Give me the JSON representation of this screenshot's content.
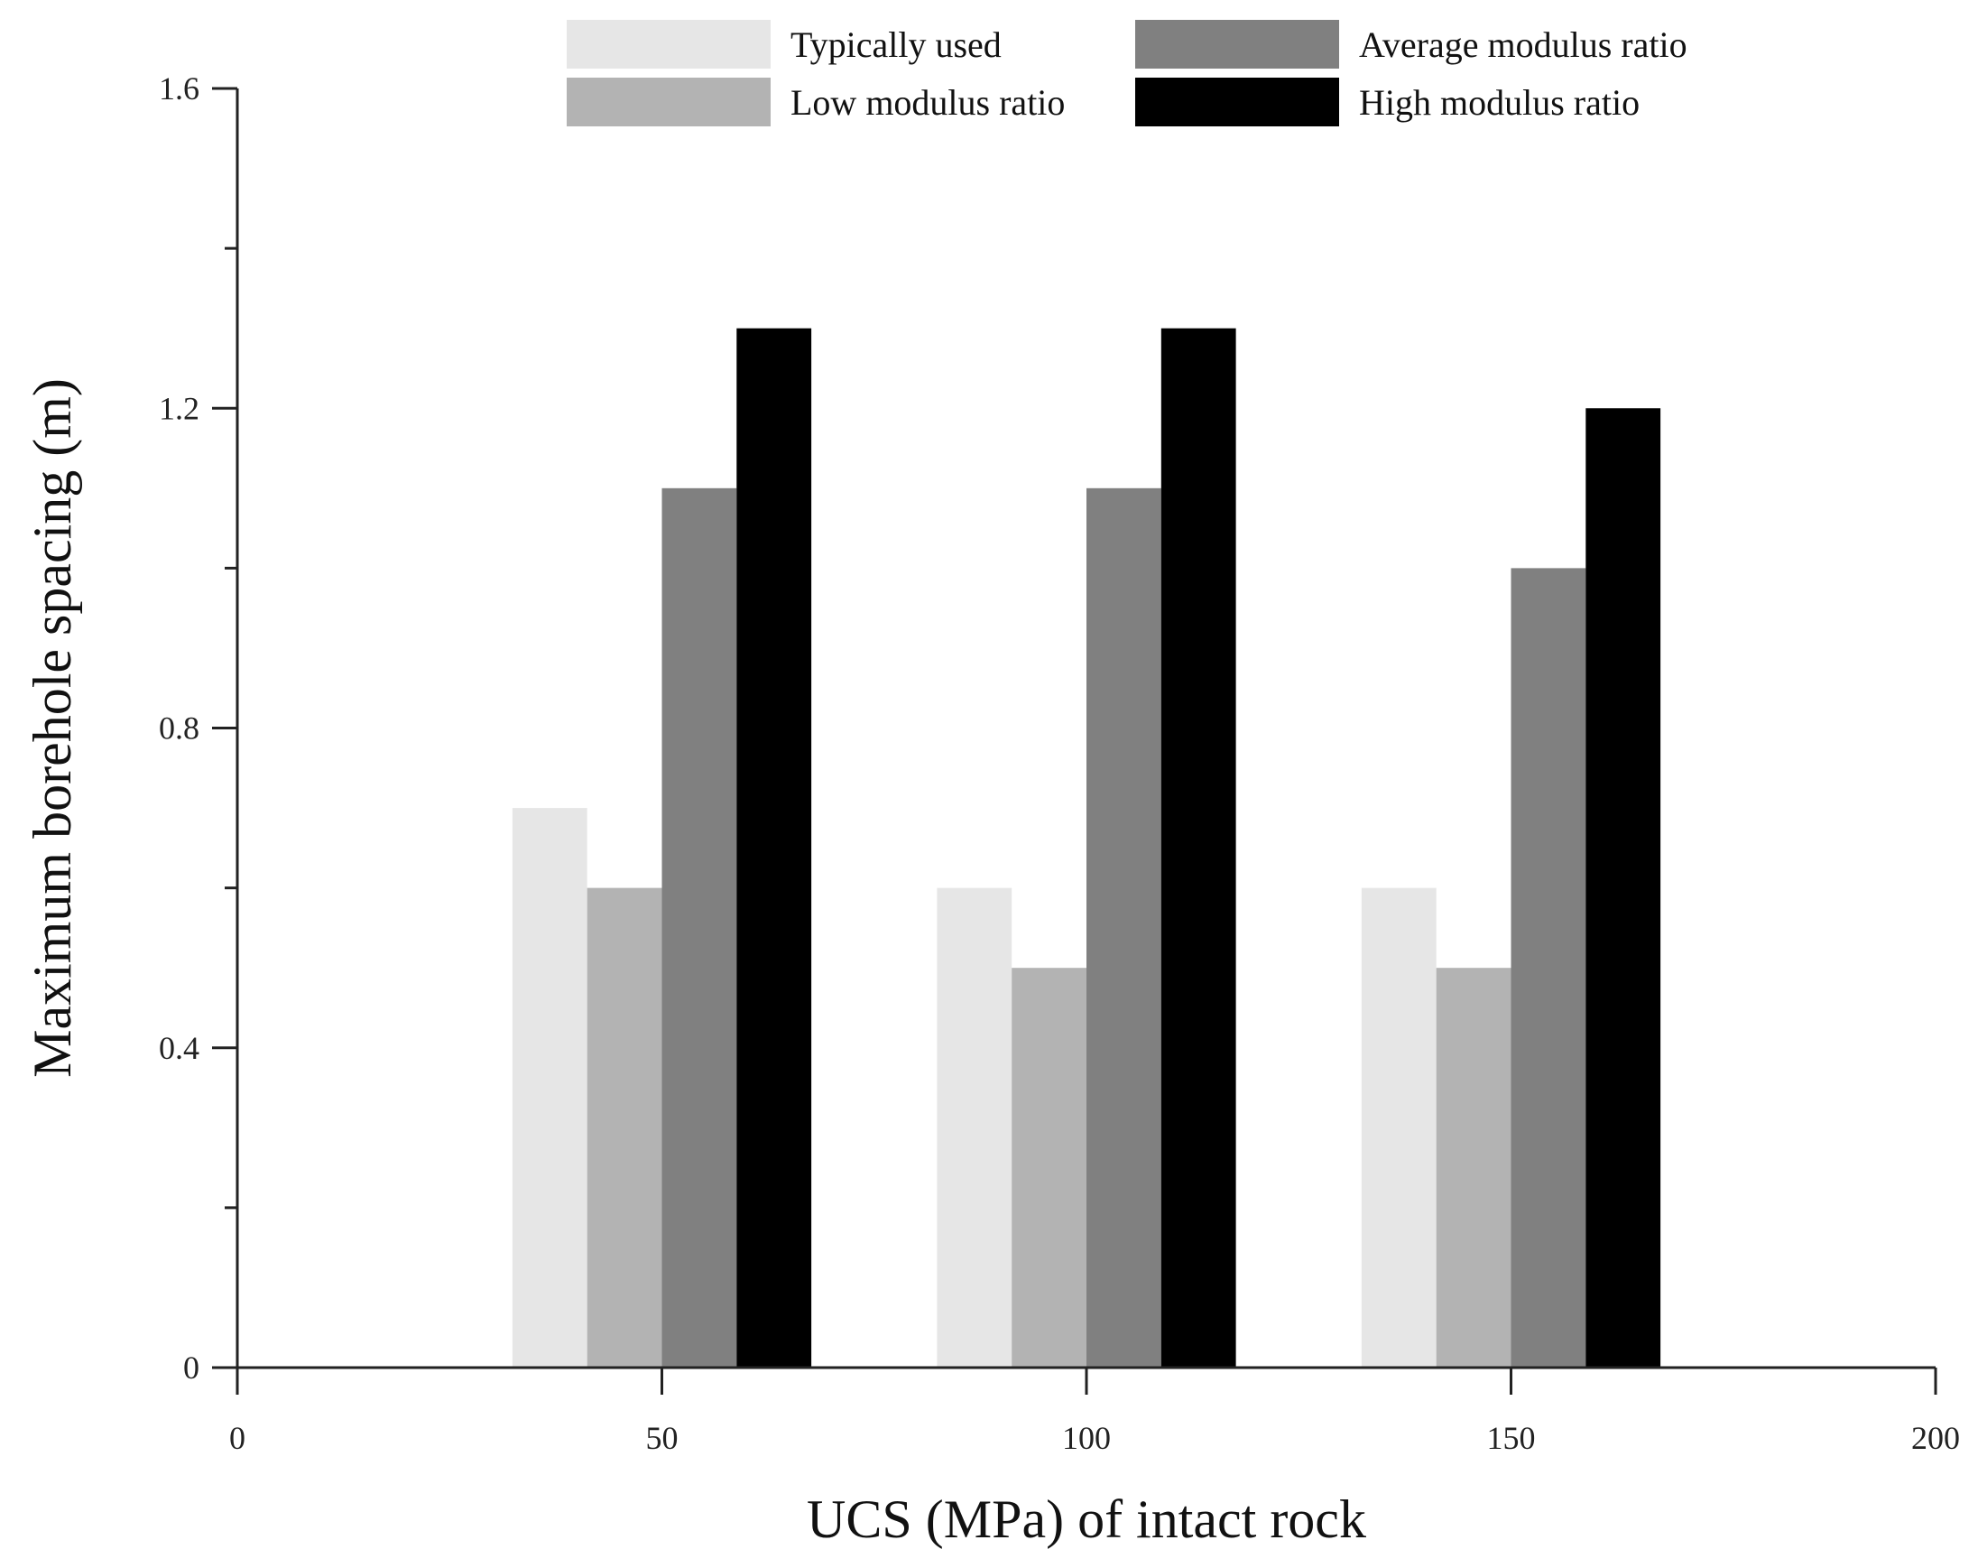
{
  "chart_data": {
    "type": "bar",
    "title": "",
    "xlabel": "UCS (MPa) of intact rock",
    "ylabel": "Maximum borehole spacing (m)",
    "x": [
      50,
      100,
      150
    ],
    "xlim": [
      0,
      200
    ],
    "ylim": [
      0,
      1.6
    ],
    "x_ticks": [
      0,
      50,
      100,
      150,
      200
    ],
    "y_ticks": [
      0,
      0.4,
      0.8,
      1.2,
      1.6
    ],
    "x_tick_labels": [
      "0",
      "50",
      "100",
      "150",
      "200"
    ],
    "y_tick_labels": [
      "0",
      "0.4",
      "0.8",
      "1.2",
      "1.6"
    ],
    "bar_width_units": 8.8,
    "grid": false,
    "legend_position": "top",
    "series": [
      {
        "name": "Typically used",
        "values": [
          0.7,
          0.6,
          0.6
        ],
        "color": "#e6e6e6"
      },
      {
        "name": "Low modulus ratio",
        "values": [
          0.6,
          0.5,
          0.5
        ],
        "color": "#b3b3b3"
      },
      {
        "name": "Average modulus ratio",
        "values": [
          1.1,
          1.1,
          1.0
        ],
        "color": "#808080"
      },
      {
        "name": "High modulus ratio",
        "values": [
          1.3,
          1.3,
          1.2
        ],
        "color": "#000000"
      }
    ]
  }
}
